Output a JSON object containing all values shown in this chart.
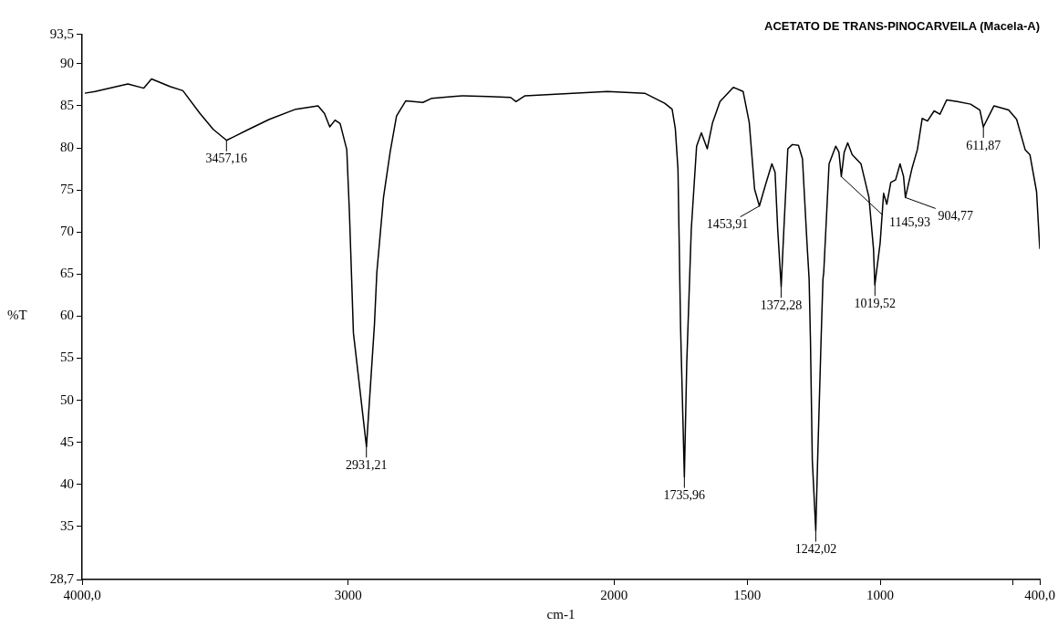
{
  "chart_data": {
    "type": "line",
    "title": "ACETATO DE TRANS-PINOCARVEILA (Macela-A)",
    "xlabel": "cm-1",
    "ylabel": "%T",
    "xlim": [
      4000,
      400
    ],
    "xticks": [
      {
        "value": 4000,
        "label": "4000,0"
      },
      3000,
      2000,
      1500,
      1000,
      {
        "value": 500,
        "label": null
      },
      {
        "value": 400,
        "label": "400,0"
      }
    ],
    "ylim": [
      28.7,
      93.5
    ],
    "yticks": [
      {
        "value": 28.7,
        "label": "28,7"
      },
      35,
      40,
      45,
      50,
      55,
      60,
      65,
      70,
      75,
      80,
      85,
      90,
      {
        "value": 93.5,
        "label": "93,5"
      }
    ],
    "grid": false,
    "legend": false,
    "marker": "none",
    "line_style": "solid",
    "series": [
      {
        "color": "#000000",
        "x": [
          3990,
          3951,
          3828,
          3768,
          3739,
          3670,
          3621,
          3557,
          3507,
          3457,
          3374,
          3296,
          3197,
          3113,
          3089,
          3069,
          3049,
          3030,
          3005,
          2995,
          2980,
          2931,
          2901,
          2892,
          2867,
          2842,
          2818,
          2783,
          2719,
          2685,
          2606,
          2571,
          2473,
          2389,
          2369,
          2335,
          2025,
          1885,
          1810,
          1782,
          1770,
          1760,
          1750,
          1736,
          1727,
          1710,
          1690,
          1672,
          1650,
          1630,
          1602,
          1552,
          1515,
          1492,
          1472,
          1454,
          1432,
          1407,
          1395,
          1385,
          1372,
          1362,
          1347,
          1330,
          1307,
          1292,
          1275,
          1267,
          1262,
          1255,
          1242,
          1235,
          1222,
          1215,
          1212,
          1192,
          1167,
          1155,
          1146,
          1135,
          1122,
          1105,
          1072,
          1042,
          1025,
          1020,
          1000,
          987,
          975,
          960,
          942,
          925,
          912,
          905,
          880,
          860,
          842,
          822,
          797,
          775,
          750,
          710,
          660,
          625,
          612,
          572,
          517,
          487,
          455,
          437,
          412,
          400
        ],
        "values": [
          86.5,
          86.7,
          87.6,
          87.1,
          88.2,
          87.3,
          86.8,
          84.1,
          82.2,
          80.9,
          82.2,
          83.4,
          84.6,
          85.0,
          84.1,
          82.5,
          83.3,
          82.9,
          79.8,
          72.3,
          58,
          44.5,
          59,
          65.2,
          74.1,
          79.5,
          83.8,
          85.6,
          85.4,
          85.9,
          86.1,
          86.2,
          86.1,
          86.0,
          85.5,
          86.2,
          86.7,
          86.5,
          85.3,
          84.6,
          82.3,
          77.5,
          58.4,
          40.9,
          54.4,
          70.3,
          80.2,
          81.8,
          79.9,
          83.0,
          85.5,
          87.2,
          86.7,
          83.0,
          75.1,
          73.1,
          75.5,
          78.1,
          77.1,
          70.3,
          63.5,
          70.3,
          79.9,
          80.4,
          80.3,
          78.7,
          68.7,
          64.4,
          57.2,
          42.9,
          34.5,
          42.9,
          57.2,
          64.4,
          65.2,
          78.1,
          80.2,
          79.5,
          76.6,
          79.5,
          80.6,
          79.2,
          78.1,
          74.1,
          68.0,
          63.7,
          68.7,
          74.6,
          73.3,
          75.9,
          76.2,
          78.1,
          76.6,
          74.1,
          77.6,
          79.8,
          83.5,
          83.2,
          84.4,
          84.0,
          85.7,
          85.5,
          85.2,
          84.5,
          82.5,
          85.0,
          84.5,
          83.4,
          79.8,
          79.2,
          74.8,
          68.0
        ]
      }
    ],
    "annotations": [
      {
        "text": "3457,16",
        "x": 3457.16,
        "y": 80.9
      },
      {
        "text": "2931,21",
        "x": 2931.21,
        "y": 44.5
      },
      {
        "text": "1735,96",
        "x": 1735.96,
        "y": 40.9
      },
      {
        "text": "1453,91",
        "x": 1453.91,
        "y": 73.1
      },
      {
        "text": "1372,28",
        "x": 1372.28,
        "y": 63.5
      },
      {
        "text": "1242,02",
        "x": 1242.02,
        "y": 34.5
      },
      {
        "text": "1145,93",
        "x": 1145.93,
        "y": 76.6
      },
      {
        "text": "1019,52",
        "x": 1019.52,
        "y": 63.7
      },
      {
        "text": "904,77",
        "x": 904.77,
        "y": 74.1
      },
      {
        "text": "611,87",
        "x": 611.87,
        "y": 82.5
      }
    ]
  }
}
